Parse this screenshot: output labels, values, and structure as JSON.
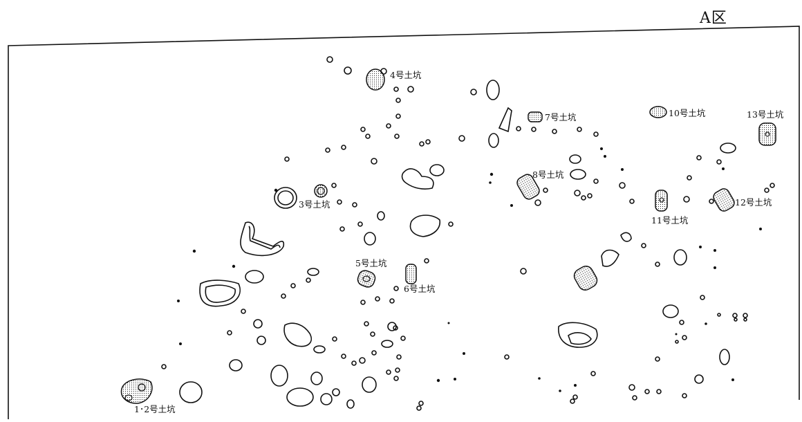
{
  "area_title": "A区",
  "pits": [
    {
      "id": "pit-1-2",
      "label": "1･2号土坑"
    },
    {
      "id": "pit-3",
      "label": "3号土坑"
    },
    {
      "id": "pit-4",
      "label": "4号土坑"
    },
    {
      "id": "pit-5",
      "label": "5号土坑"
    },
    {
      "id": "pit-6",
      "label": "6号土坑"
    },
    {
      "id": "pit-7",
      "label": "7号土坑"
    },
    {
      "id": "pit-8",
      "label": "8号土坑"
    },
    {
      "id": "pit-10",
      "label": "10号土坑"
    },
    {
      "id": "pit-11",
      "label": "11号土坑"
    },
    {
      "id": "pit-12",
      "label": "12号土坑"
    },
    {
      "id": "pit-13",
      "label": "13号土坑"
    }
  ],
  "colors": {
    "line": "#111111",
    "background": "#ffffff"
  }
}
